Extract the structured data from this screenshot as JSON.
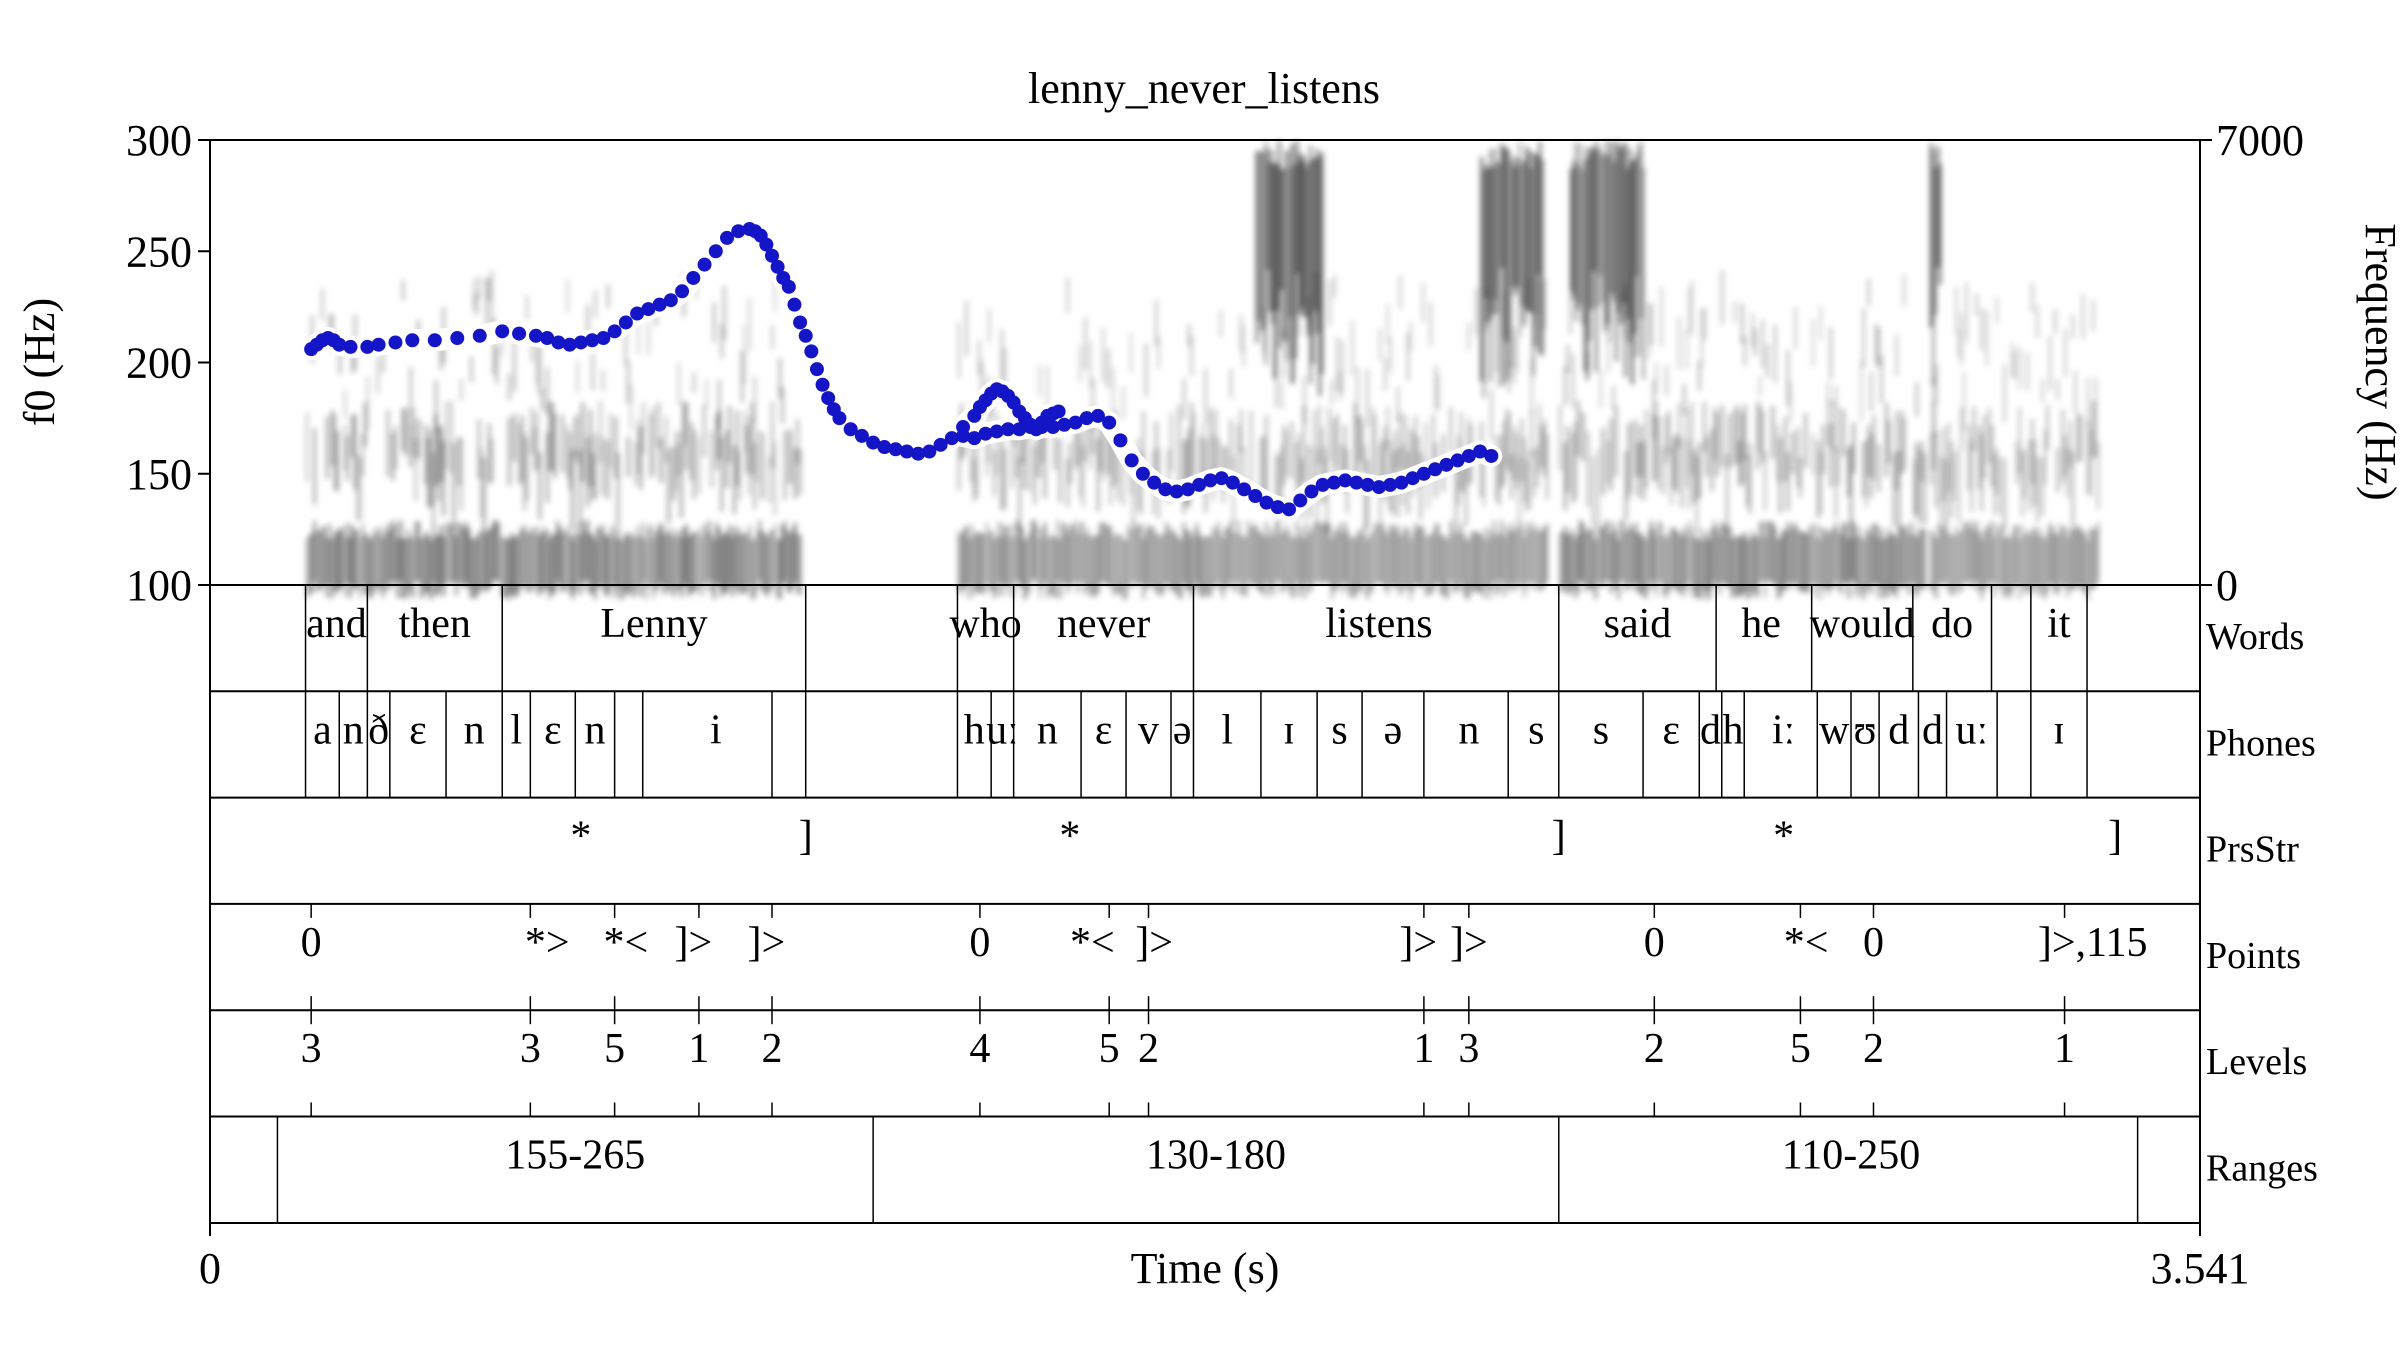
{
  "chart_data": {
    "type": "line",
    "title": "lenny_never_listens",
    "xlabel": "Time (s)",
    "ylabel": "f0 (Hz)",
    "ylabel_right": "Frequency (Hz)",
    "xlim": [
      0,
      3.541
    ],
    "xtick_labels": [
      "0",
      "3.541"
    ],
    "ylim": [
      100,
      300
    ],
    "yticks": [
      100,
      150,
      200,
      250,
      300
    ],
    "ylim_right": [
      0,
      7000
    ],
    "yticks_right_labels": [
      "0",
      "7000"
    ],
    "colors": {
      "f0": "#1515c8",
      "halo": "#ffffff",
      "spectrogram": "#000000"
    },
    "series": [
      {
        "name": "",
        "segments": [
          {
            "x": [
              0.18,
              0.19,
              0.2,
              0.21,
              0.22,
              0.23,
              0.25,
              0.28,
              0.3,
              0.33,
              0.36,
              0.4,
              0.44,
              0.48,
              0.52,
              0.55,
              0.58,
              0.6,
              0.62,
              0.64,
              0.66,
              0.68,
              0.7,
              0.72,
              0.74,
              0.76,
              0.78,
              0.8,
              0.82,
              0.84,
              0.86,
              0.88,
              0.9,
              0.92,
              0.94,
              0.96,
              0.97,
              0.98,
              0.99,
              1.0,
              1.01,
              1.02,
              1.03,
              1.04,
              1.05,
              1.06,
              1.07,
              1.08,
              1.09,
              1.1,
              1.11,
              1.12,
              1.14,
              1.16,
              1.18,
              1.2,
              1.22,
              1.24,
              1.26,
              1.28,
              1.3,
              1.32,
              1.34,
              1.36,
              1.37,
              1.38,
              1.39,
              1.4,
              1.41,
              1.42,
              1.43,
              1.44,
              1.45,
              1.46,
              1.47,
              1.48,
              1.49,
              1.5,
              1.51
            ],
            "y": [
              206,
              208,
              210,
              211,
              210,
              208,
              207,
              207,
              208,
              209,
              210,
              210,
              211,
              212,
              214,
              213,
              212,
              211,
              209,
              208,
              209,
              210,
              211,
              214,
              218,
              222,
              224,
              226,
              228,
              232,
              238,
              244,
              250,
              256,
              259,
              260,
              259,
              257,
              253,
              248,
              243,
              238,
              234,
              226,
              218,
              212,
              205,
              197,
              190,
              184,
              179,
              175,
              170,
              167,
              164,
              162,
              161,
              160,
              159,
              160,
              163,
              166,
              171,
              176,
              180,
              183,
              186,
              188,
              187,
              185,
              182,
              178,
              175,
              172,
              170,
              173,
              176,
              177,
              178
            ]
          },
          {
            "x": [
              1.34,
              1.36,
              1.38,
              1.4,
              1.42,
              1.44,
              1.46,
              1.48,
              1.5,
              1.52,
              1.54,
              1.56,
              1.58,
              1.6,
              1.62,
              1.64,
              1.66,
              1.68,
              1.7,
              1.72,
              1.74,
              1.76,
              1.78,
              1.8,
              1.82,
              1.84,
              1.86,
              1.88,
              1.9,
              1.92,
              1.94,
              1.96,
              1.98,
              2.0,
              2.02,
              2.04,
              2.06,
              2.08,
              2.1,
              2.12,
              2.14,
              2.16,
              2.18,
              2.2,
              2.22,
              2.24,
              2.26,
              2.28
            ],
            "y": [
              167,
              166,
              168,
              169,
              170,
              170,
              171,
              171,
              171,
              172,
              173,
              175,
              176,
              173,
              165,
              156,
              150,
              146,
              143,
              142,
              143,
              145,
              147,
              148,
              146,
              143,
              140,
              137,
              135,
              134,
              138,
              142,
              145,
              146,
              147,
              146,
              145,
              144,
              145,
              146,
              148,
              150,
              152,
              154,
              156,
              158,
              160,
              158
            ]
          }
        ]
      }
    ],
    "text_f0_segments_note": "",
    "tiers": [
      {
        "name": "Words",
        "boundaries": [
          0.17,
          0.28,
          0.52,
          1.06,
          1.33,
          1.43,
          1.75,
          2.4,
          2.68,
          2.85,
          3.03,
          3.17,
          3.24,
          3.34
        ],
        "labels": [
          {
            "t": 0.225,
            "text": "and"
          },
          {
            "t": 0.4,
            "text": "then"
          },
          {
            "t": 0.79,
            "text": "Lenny"
          },
          {
            "t": 1.38,
            "text": "who"
          },
          {
            "t": 1.59,
            "text": "never"
          },
          {
            "t": 2.08,
            "text": "listens"
          },
          {
            "t": 2.54,
            "text": "said"
          },
          {
            "t": 2.76,
            "text": "he"
          },
          {
            "t": 2.94,
            "text": "would"
          },
          {
            "t": 3.1,
            "text": "do"
          },
          {
            "t": 3.29,
            "text": "it"
          }
        ]
      },
      {
        "name": "Phones",
        "boundaries": [
          0.17,
          0.23,
          0.28,
          0.32,
          0.42,
          0.52,
          0.57,
          0.65,
          0.72,
          0.77,
          1.0,
          1.06,
          1.33,
          1.39,
          1.43,
          1.55,
          1.63,
          1.71,
          1.75,
          1.87,
          1.97,
          2.05,
          2.16,
          2.31,
          2.4,
          2.55,
          2.65,
          2.69,
          2.73,
          2.86,
          2.92,
          2.97,
          3.04,
          3.09,
          3.18,
          3.24,
          3.34
        ],
        "labels": [
          {
            "t": 0.2,
            "text": "a"
          },
          {
            "t": 0.255,
            "text": "n"
          },
          {
            "t": 0.3,
            "text": "ð"
          },
          {
            "t": 0.37,
            "text": "ɛ"
          },
          {
            "t": 0.47,
            "text": "n"
          },
          {
            "t": 0.545,
            "text": "l"
          },
          {
            "t": 0.61,
            "text": "ɛ"
          },
          {
            "t": 0.685,
            "text": "n"
          },
          {
            "t": 0.9,
            "text": "i"
          },
          {
            "t": 1.36,
            "text": "h"
          },
          {
            "t": 1.41,
            "text": "uː"
          },
          {
            "t": 1.49,
            "text": "n"
          },
          {
            "t": 1.59,
            "text": "ɛ"
          },
          {
            "t": 1.67,
            "text": "v"
          },
          {
            "t": 1.73,
            "text": "ə"
          },
          {
            "t": 1.81,
            "text": "l"
          },
          {
            "t": 1.92,
            "text": "ɪ"
          },
          {
            "t": 2.01,
            "text": "s"
          },
          {
            "t": 2.105,
            "text": "ə"
          },
          {
            "t": 2.24,
            "text": "n"
          },
          {
            "t": 2.36,
            "text": "s"
          },
          {
            "t": 2.475,
            "text": "s"
          },
          {
            "t": 2.6,
            "text": "ɛ"
          },
          {
            "t": 2.67,
            "text": "d"
          },
          {
            "t": 2.71,
            "text": "h"
          },
          {
            "t": 2.8,
            "text": "iː"
          },
          {
            "t": 2.89,
            "text": "w"
          },
          {
            "t": 2.945,
            "text": "ʊ"
          },
          {
            "t": 3.005,
            "text": "d"
          },
          {
            "t": 3.065,
            "text": "d"
          },
          {
            "t": 3.135,
            "text": "uː"
          },
          {
            "t": 3.29,
            "text": "ɪ"
          }
        ]
      },
      {
        "name": "PrsStr",
        "boundaries": [],
        "labels": [
          {
            "t": 0.66,
            "text": "*"
          },
          {
            "t": 1.06,
            "text": "]"
          },
          {
            "t": 1.53,
            "text": "*"
          },
          {
            "t": 2.4,
            "text": "]"
          },
          {
            "t": 2.8,
            "text": "*"
          },
          {
            "t": 3.39,
            "text": "]"
          }
        ]
      },
      {
        "name": "Points",
        "ticks": [
          0.18,
          0.57,
          0.72,
          0.87,
          1.0,
          1.37,
          1.6,
          1.67,
          2.16,
          2.24,
          2.57,
          2.83,
          2.96,
          3.3
        ],
        "labels": [
          {
            "t": 0.18,
            "text": "0"
          },
          {
            "t": 0.6,
            "text": "*>"
          },
          {
            "t": 0.74,
            "text": "*<"
          },
          {
            "t": 0.86,
            "text": "]>"
          },
          {
            "t": 0.99,
            "text": "]>"
          },
          {
            "t": 1.37,
            "text": "0"
          },
          {
            "t": 1.57,
            "text": "*<"
          },
          {
            "t": 1.68,
            "text": "]>"
          },
          {
            "t": 2.15,
            "text": "]>"
          },
          {
            "t": 2.24,
            "text": "]>"
          },
          {
            "t": 2.57,
            "text": "0"
          },
          {
            "t": 2.84,
            "text": "*<"
          },
          {
            "t": 2.96,
            "text": "0"
          },
          {
            "t": 3.35,
            "text": "]>,115"
          }
        ]
      },
      {
        "name": "Levels",
        "ticks": [
          0.18,
          0.57,
          0.72,
          0.87,
          1.0,
          1.37,
          1.6,
          1.67,
          2.16,
          2.24,
          2.57,
          2.83,
          2.96,
          3.3
        ],
        "labels": [
          {
            "t": 0.18,
            "text": "3"
          },
          {
            "t": 0.57,
            "text": "3"
          },
          {
            "t": 0.72,
            "text": "5"
          },
          {
            "t": 0.87,
            "text": "1"
          },
          {
            "t": 1.0,
            "text": "2"
          },
          {
            "t": 1.37,
            "text": "4"
          },
          {
            "t": 1.6,
            "text": "5"
          },
          {
            "t": 1.67,
            "text": "2"
          },
          {
            "t": 2.16,
            "text": "1"
          },
          {
            "t": 2.24,
            "text": "3"
          },
          {
            "t": 2.57,
            "text": "2"
          },
          {
            "t": 2.83,
            "text": "5"
          },
          {
            "t": 2.96,
            "text": "2"
          },
          {
            "t": 3.3,
            "text": "1"
          }
        ]
      },
      {
        "name": "Ranges",
        "boundaries": [
          0.12,
          1.18,
          2.4,
          3.43
        ],
        "labels": [
          {
            "t": 0.65,
            "text": "155-265"
          },
          {
            "t": 1.79,
            "text": "130-180"
          },
          {
            "t": 2.92,
            "text": "110-250"
          }
        ]
      }
    ]
  }
}
